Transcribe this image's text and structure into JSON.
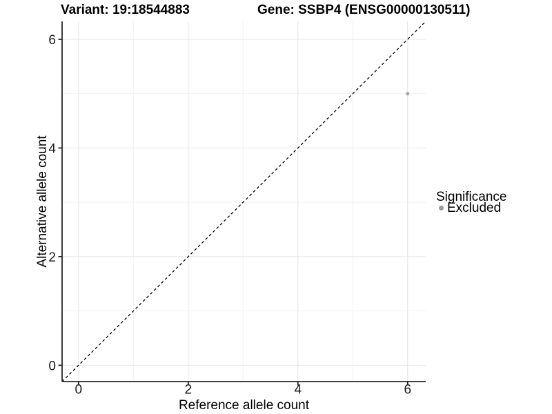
{
  "header": {
    "variant_title": "Variant: 19:18544883",
    "gene_title": "Gene: SSBP4 (ENSG00000130511)"
  },
  "chart_data": {
    "type": "scatter",
    "xlabel": "Reference allele count",
    "ylabel": "Alternative allele count",
    "xlim": [
      -0.3,
      6.33
    ],
    "ylim": [
      -0.3,
      6.33
    ],
    "x_ticks": [
      0,
      2,
      4,
      6
    ],
    "y_ticks": [
      0,
      2,
      4,
      6
    ],
    "x_minor_ticks": [
      1,
      3,
      5
    ],
    "y_minor_ticks": [
      1,
      3,
      5
    ],
    "grid": "major+minor",
    "series": [
      {
        "name": "Excluded",
        "color": "#a8a8a8",
        "points": [
          {
            "x": 6,
            "y": 5
          }
        ]
      }
    ],
    "reference_line": {
      "kind": "identity",
      "slope": 1,
      "intercept": 0,
      "style": "dashed",
      "color": "#000000"
    },
    "legend": {
      "title": "Significance",
      "position": "right",
      "items": [
        {
          "label": "Excluded",
          "color": "#999999"
        }
      ]
    },
    "style_colors": {
      "axis_line": "#262626",
      "grid_major": "#e5e5e5",
      "grid_minor": "#f2f2f2",
      "background": "#ffffff"
    }
  }
}
